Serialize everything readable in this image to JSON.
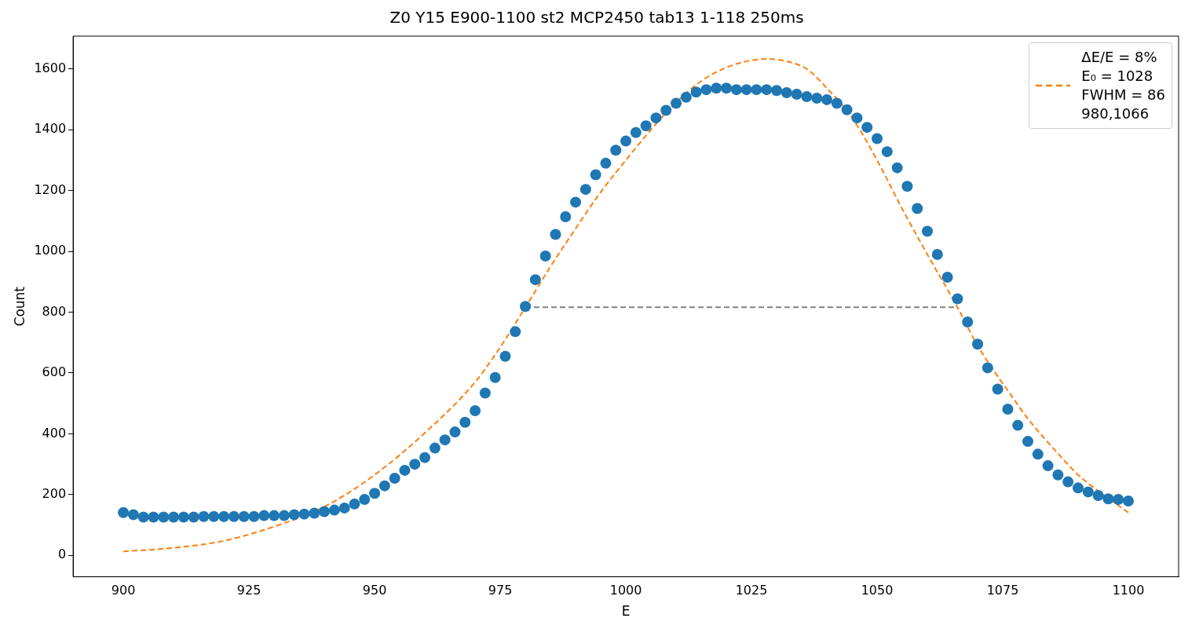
{
  "chart_data": {
    "type": "scatter",
    "title": "Z0 Y15 E900-1100 st2 MCP2450 tab13 1-118 250ms",
    "xlabel": "E",
    "ylabel": "Count",
    "xlim": [
      890,
      1110
    ],
    "xticks": [
      900,
      925,
      950,
      975,
      1000,
      1025,
      1050,
      1075,
      1100
    ],
    "ylim": [
      -70,
      1708
    ],
    "yticks": [
      0,
      200,
      400,
      600,
      800,
      1000,
      1200,
      1400,
      1600
    ],
    "grid": false,
    "legend": "top right",
    "series": [
      {
        "type": "scatter",
        "color": "#1f77b4",
        "marker": "circle",
        "x": [
          900,
          902,
          904,
          906,
          908,
          910,
          912,
          914,
          916,
          918,
          920,
          922,
          924,
          926,
          928,
          930,
          932,
          934,
          936,
          938,
          940,
          942,
          944,
          946,
          948,
          950,
          952,
          954,
          956,
          958,
          960,
          962,
          964,
          966,
          968,
          970,
          972,
          974,
          976,
          978,
          980,
          982,
          984,
          986,
          988,
          990,
          992,
          994,
          996,
          998,
          1000,
          1002,
          1004,
          1006,
          1008,
          1010,
          1012,
          1014,
          1016,
          1018,
          1020,
          1022,
          1024,
          1026,
          1028,
          1030,
          1032,
          1034,
          1036,
          1038,
          1040,
          1042,
          1044,
          1046,
          1048,
          1050,
          1052,
          1054,
          1056,
          1058,
          1060,
          1062,
          1064,
          1066,
          1068,
          1070,
          1072,
          1074,
          1076,
          1078,
          1080,
          1082,
          1084,
          1086,
          1088,
          1090,
          1092,
          1094,
          1096,
          1098,
          1100
        ],
        "values": [
          141,
          134,
          126,
          126,
          126,
          126,
          126,
          126,
          128,
          128,
          128,
          128,
          128,
          128,
          131,
          131,
          131,
          134,
          136,
          139,
          144,
          149,
          156,
          169,
          184,
          204,
          229,
          254,
          280,
          300,
          322,
          353,
          380,
          406,
          438,
          476,
          534,
          585,
          655,
          736,
          819,
          907,
          985,
          1056,
          1114,
          1162,
          1204,
          1252,
          1290,
          1333,
          1363,
          1391,
          1413,
          1439,
          1464,
          1487,
          1507,
          1524,
          1532,
          1537,
          1537,
          1532,
          1532,
          1532,
          1532,
          1529,
          1522,
          1517,
          1509,
          1504,
          1499,
          1487,
          1466,
          1439,
          1408,
          1371,
          1328,
          1275,
          1214,
          1141,
          1066,
          990,
          915,
          844,
          768,
          695,
          617,
          547,
          481,
          428,
          375,
          333,
          295,
          265,
          242,
          222,
          209,
          197,
          186,
          184,
          179
        ]
      },
      {
        "type": "line",
        "name": "ΔE/E = 8%\nE₀ = 1028\nFWHM = 86\n980,1066",
        "color": "#ff7f0e",
        "line_style": "dashed",
        "marker": "none",
        "x": [
          900,
          910,
          920,
          930,
          940,
          950,
          960,
          970,
          975,
          980,
          985,
          990,
          995,
          1000,
          1005,
          1010,
          1015,
          1020,
          1024,
          1028,
          1032,
          1036,
          1040,
          1045,
          1050,
          1055,
          1060,
          1066,
          1070,
          1077,
          1080,
          1087,
          1090,
          1095,
          1100
        ],
        "values": [
          13,
          25,
          48,
          95,
          160,
          265,
          403,
          570,
          685,
          816,
          950,
          1075,
          1195,
          1300,
          1400,
          1490,
          1560,
          1605,
          1625,
          1633,
          1625,
          1600,
          1537,
          1440,
          1300,
          1140,
          990,
          816,
          690,
          519,
          450,
          317,
          265,
          200,
          141
        ]
      },
      {
        "type": "line",
        "color": "#808080",
        "line_style": "dashed",
        "marker": "none",
        "x": [
          980,
          1066
        ],
        "values": [
          816,
          816
        ]
      }
    ]
  }
}
